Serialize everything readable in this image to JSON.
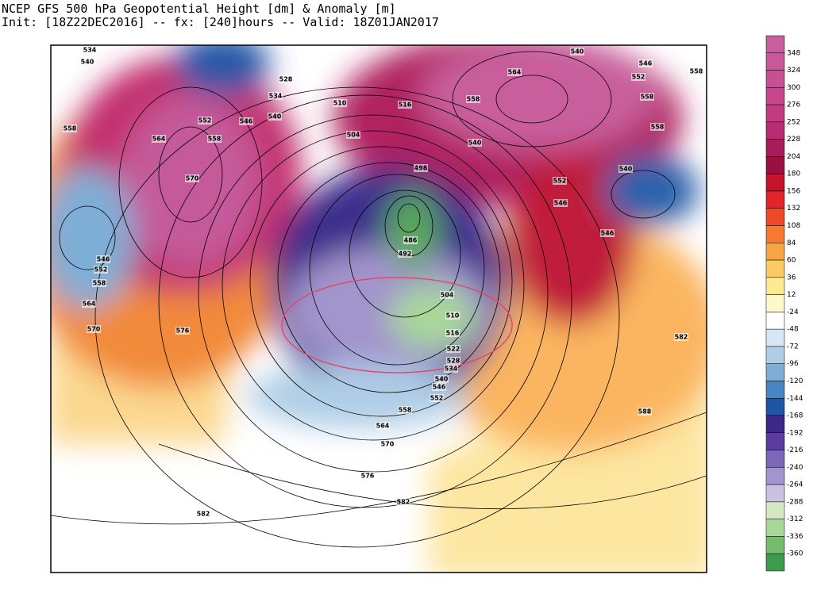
{
  "header": {
    "title": "NCEP GFS 500 hPa Geopotential Height [dm] & Anomaly [m]",
    "subtitle": "Init: [18Z22DEC2016] -- fx: [240]hours -- Valid: 18Z01JAN2017"
  },
  "colorbar": {
    "labels": [
      348,
      324,
      300,
      276,
      252,
      228,
      204,
      180,
      156,
      132,
      108,
      84,
      60,
      36,
      12,
      -24,
      -48,
      -72,
      -96,
      -120,
      -144,
      -168,
      -192,
      -216,
      -240,
      -264,
      -288,
      -312,
      -336,
      -360
    ],
    "colors": [
      "#c85e9c",
      "#c9589a",
      "#c94f94",
      "#c7458c",
      "#c23a82",
      "#b82c72",
      "#a81c5c",
      "#9a1040",
      "#c4142a",
      "#e0262a",
      "#ee4a2a",
      "#f57a30",
      "#f8a442",
      "#fbca62",
      "#fde894",
      "#fff8cc",
      "#ffffff",
      "#d6e6f3",
      "#aecde6",
      "#7eaed6",
      "#4886c2",
      "#1f56a4",
      "#3c2888",
      "#5c3d9e",
      "#7c66b6",
      "#a294cc",
      "#cac2e2",
      "#d2e9c2",
      "#a8d898",
      "#74bd6c",
      "#3b9c4e"
    ]
  },
  "contour_labels": [
    534,
    540,
    528,
    534,
    540,
    546,
    552,
    558,
    564,
    558,
    570,
    510,
    516,
    504,
    498,
    486,
    492,
    504,
    510,
    516,
    522,
    528,
    534,
    540,
    546,
    552,
    558,
    564,
    570,
    576,
    582,
    582,
    576,
    570,
    564,
    558,
    552,
    546,
    564,
    558,
    540,
    546,
    552,
    558,
    558,
    558,
    540,
    552,
    546,
    546,
    540,
    582,
    588
  ]
}
